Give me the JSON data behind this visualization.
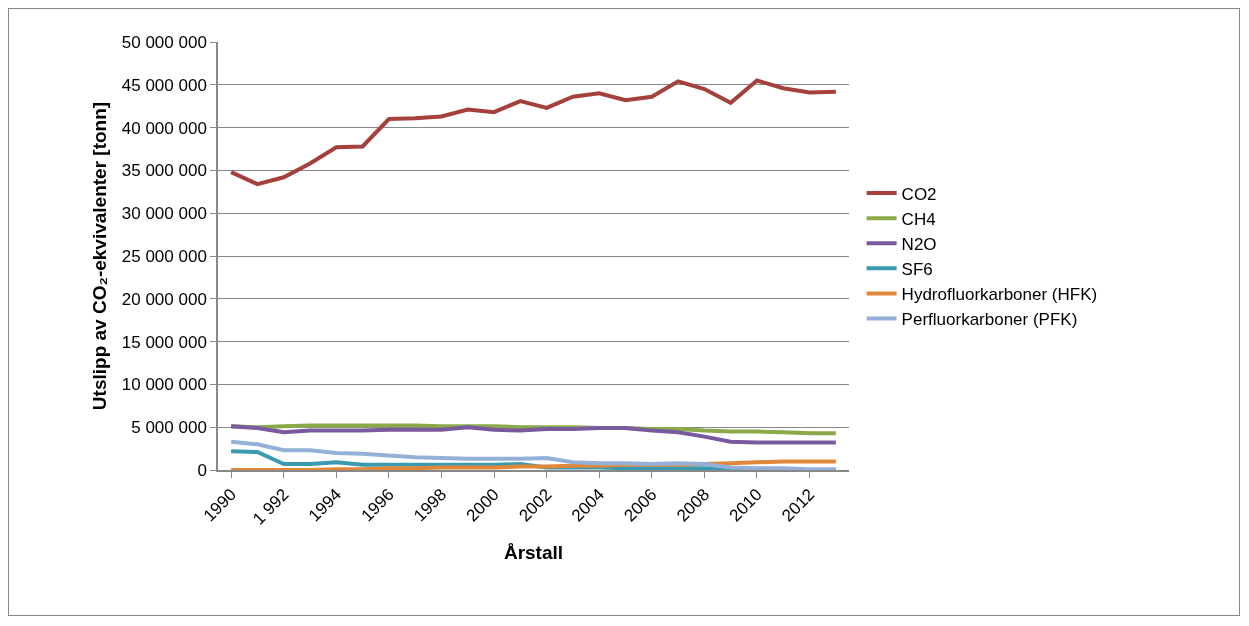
{
  "chart_data": {
    "type": "line",
    "xlabel": "Årstall",
    "ylabel": "Utslipp av CO₂-ekvivalenter [tonn]",
    "categories": [
      "1990",
      null,
      "1 992",
      null,
      "1994",
      null,
      "1996",
      null,
      "1998",
      null,
      "2000",
      null,
      "2002",
      null,
      "2004",
      null,
      "2006",
      null,
      "2008",
      null,
      "2010",
      null,
      "2012",
      null
    ],
    "series": [
      {
        "name": "CO2",
        "color": "#a5403d",
        "values": [
          34800000,
          33400000,
          34200000,
          35800000,
          37700000,
          37800000,
          41000000,
          41100000,
          41300000,
          42100000,
          41800000,
          43100000,
          42300000,
          43600000,
          44000000,
          43200000,
          43600000,
          45400000,
          44500000,
          42900000,
          45500000,
          44600000,
          44100000,
          44200000
        ]
      },
      {
        "name": "CH4",
        "color": "#8aaa4a",
        "values": [
          5100000,
          5000000,
          5100000,
          5200000,
          5200000,
          5200000,
          5200000,
          5200000,
          5100000,
          5100000,
          5100000,
          5000000,
          5000000,
          5000000,
          4900000,
          4900000,
          4800000,
          4800000,
          4600000,
          4500000,
          4500000,
          4400000,
          4300000,
          4300000
        ]
      },
      {
        "name": "N2O",
        "color": "#7a5a9e",
        "values": [
          5100000,
          4900000,
          4400000,
          4600000,
          4600000,
          4600000,
          4700000,
          4700000,
          4700000,
          5000000,
          4700000,
          4600000,
          4800000,
          4800000,
          4900000,
          4900000,
          4600000,
          4400000,
          3900000,
          3300000,
          3200000,
          3200000,
          3200000,
          3200000
        ]
      },
      {
        "name": "SF6",
        "color": "#3a9ab0",
        "values": [
          2200000,
          2100000,
          700000,
          700000,
          900000,
          600000,
          600000,
          600000,
          600000,
          600000,
          600000,
          700000,
          300000,
          300000,
          300000,
          200000,
          200000,
          200000,
          200000,
          100000,
          0,
          0,
          0,
          0
        ]
      },
      {
        "name": "Hydrofluorkarboner (HFK)",
        "color": "#e0883a",
        "values": [
          0,
          0,
          0,
          0,
          100000,
          100000,
          200000,
          200000,
          300000,
          300000,
          300000,
          400000,
          400000,
          500000,
          500000,
          600000,
          600000,
          600000,
          700000,
          800000,
          900000,
          1000000,
          1000000,
          1000000
        ]
      },
      {
        "name": "Perfluorkarboner (PFK)",
        "color": "#95b0d8",
        "values": [
          3300000,
          3000000,
          2300000,
          2300000,
          2000000,
          1900000,
          1700000,
          1500000,
          1400000,
          1300000,
          1300000,
          1300000,
          1400000,
          900000,
          800000,
          800000,
          700000,
          800000,
          700000,
          300000,
          200000,
          200000,
          100000,
          100000
        ]
      }
    ],
    "ylim": [
      0,
      50000000
    ],
    "yticks": [
      0,
      {
        "value": 5000000,
        "label": "5 000 000"
      },
      {
        "value": 10000000,
        "label": "10 000 000"
      },
      {
        "value": 15000000,
        "label": "15 000 000"
      },
      {
        "value": 20000000,
        "label": "20 000 000"
      },
      {
        "value": 25000000,
        "label": "25 000 000"
      },
      {
        "value": 30000000,
        "label": "30 000 000"
      },
      {
        "value": 35000000,
        "label": "35 000 000"
      },
      {
        "value": 40000000,
        "label": "40 000 000"
      },
      {
        "value": 45000000,
        "label": "45 000 000"
      },
      {
        "value": 50000000,
        "label": "50 000 000"
      }
    ],
    "grid": "y",
    "legend": "right",
    "marker": "none",
    "line_style": "solid"
  }
}
